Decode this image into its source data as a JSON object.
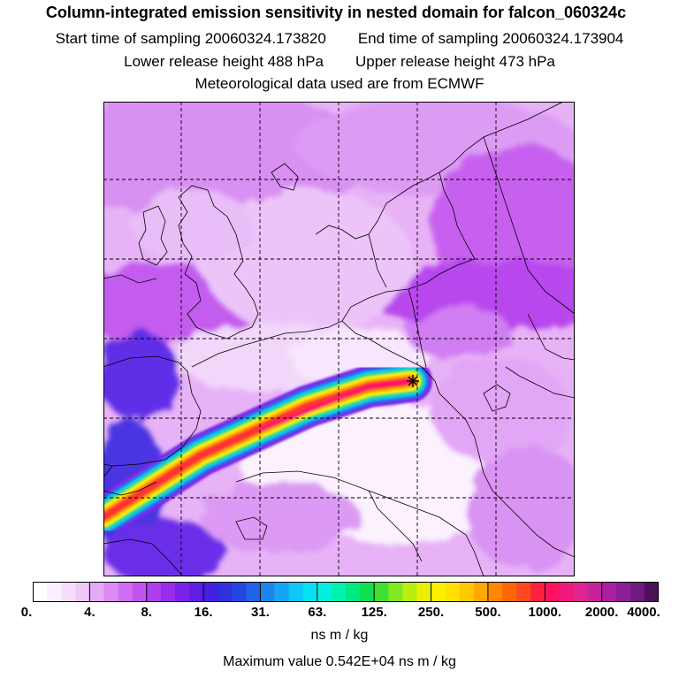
{
  "title": "Column-integrated emission sensitivity in nested domain for falcon_060324c",
  "sampling": {
    "start": "Start time of sampling 20060324.173820",
    "end": "End time of sampling 20060324.173904"
  },
  "release": {
    "lower": "Lower release height  488 hPa",
    "upper": "Upper release height  473 hPa"
  },
  "met_data": "Meteorological data used are from ECMWF",
  "colorbar": {
    "ticks": [
      "0.",
      "4.",
      "8.",
      "16.",
      "31.",
      "63.",
      "125.",
      "250.",
      "500.",
      "1000.",
      "2000.",
      "4000."
    ],
    "units": "ns m / kg",
    "colors": [
      "#ffffff",
      "#fbeefe",
      "#f6ddfd",
      "#f0c8fb",
      "#e6a9f8",
      "#dc8bf5",
      "#cf6ef2",
      "#c254ef",
      "#b13ded",
      "#9a2cec",
      "#7d22ea",
      "#5f1ee6",
      "#4520e2",
      "#3030dd",
      "#2447e0",
      "#1f64e6",
      "#1a86ee",
      "#14a6f5",
      "#0ec6f8",
      "#08e0f4",
      "#04f0dc",
      "#00f0b0",
      "#00e880",
      "#10e050",
      "#40e030",
      "#80e820",
      "#b8ee10",
      "#e8f000",
      "#fff000",
      "#ffe000",
      "#ffc800",
      "#ffa800",
      "#ff8800",
      "#ff6800",
      "#ff4820",
      "#ff2040",
      "#ff1060",
      "#f0187a",
      "#e02590",
      "#c6239a",
      "#aa20a0",
      "#8e1e98",
      "#701a82",
      "#4a1058"
    ]
  },
  "maximum": "Maximum value  0.542E+04 ns m / kg",
  "map": {
    "release_marker": "release-location",
    "grid": "dashed"
  }
}
